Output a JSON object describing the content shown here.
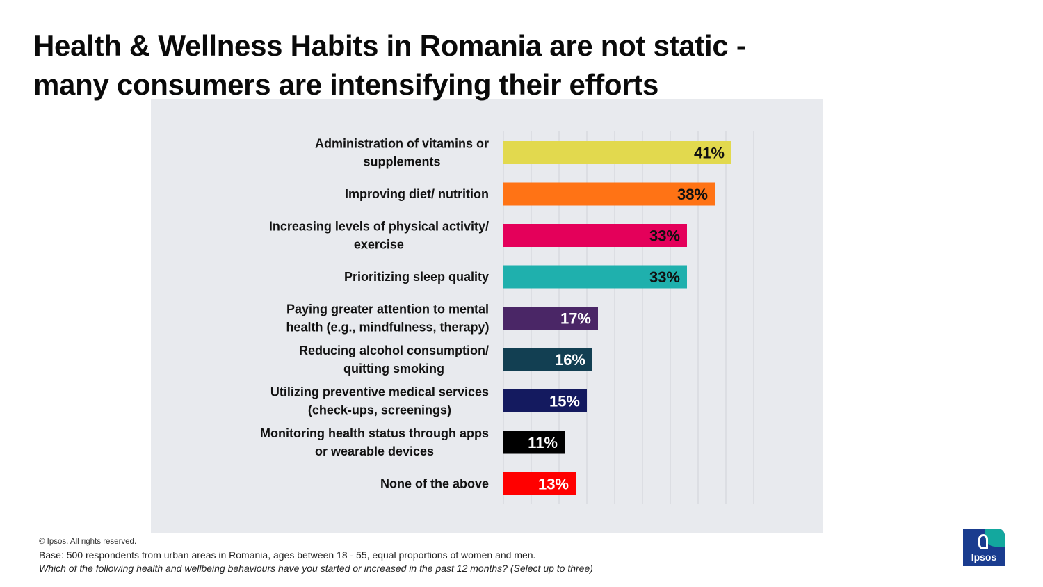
{
  "title": {
    "line1": "Health & Wellness Habits in Romania are not static -",
    "line2": "many consumers are intensifying their efforts"
  },
  "chart_data": {
    "type": "bar",
    "orientation": "horizontal",
    "categories": [
      [
        "Administration of vitamins or",
        "supplements"
      ],
      [
        "Improving diet/ nutrition"
      ],
      [
        "Increasing levels of physical activity/",
        "exercise"
      ],
      [
        "Prioritizing sleep quality"
      ],
      [
        "Paying greater attention to mental",
        "health (e.g., mindfulness, therapy)"
      ],
      [
        "Reducing alcohol consumption/",
        "quitting smoking"
      ],
      [
        "Utilizing preventive medical services",
        "(check-ups, screenings)"
      ],
      [
        "Monitoring health status through apps",
        "or wearable devices"
      ],
      [
        "None of the above"
      ]
    ],
    "values": [
      41,
      38,
      33,
      33,
      17,
      16,
      15,
      11,
      13
    ],
    "value_labels": [
      "41%",
      "38%",
      "33%",
      "33%",
      "17%",
      "16%",
      "15%",
      "11%",
      "13%"
    ],
    "colors": [
      "#e2d94e",
      "#ff7315",
      "#e4005a",
      "#1fb0ad",
      "#4a2666",
      "#123f52",
      "#141a5f",
      "#000000",
      "#ff0000"
    ],
    "label_colors": [
      "#111111",
      "#111111",
      "#111111",
      "#111111",
      "#ffffff",
      "#ffffff",
      "#ffffff",
      "#ffffff",
      "#ffffff"
    ],
    "xlim": [
      0,
      45
    ],
    "grid": true,
    "gridline_step": 5,
    "unit": "%"
  },
  "footer": {
    "copyright": "© Ipsos. All rights reserved.",
    "base": "Base: 500 respondents from urban areas in Romania, ages between 18 - 55, equal proportions of women and men.",
    "question": "Which of the following health and wellbeing behaviours have you started or increased in the past 12 months? (Select up to three)"
  },
  "logo": {
    "text": "Ipsos",
    "colors": {
      "blue": "#1a3c8f",
      "teal": "#13a89e"
    }
  }
}
